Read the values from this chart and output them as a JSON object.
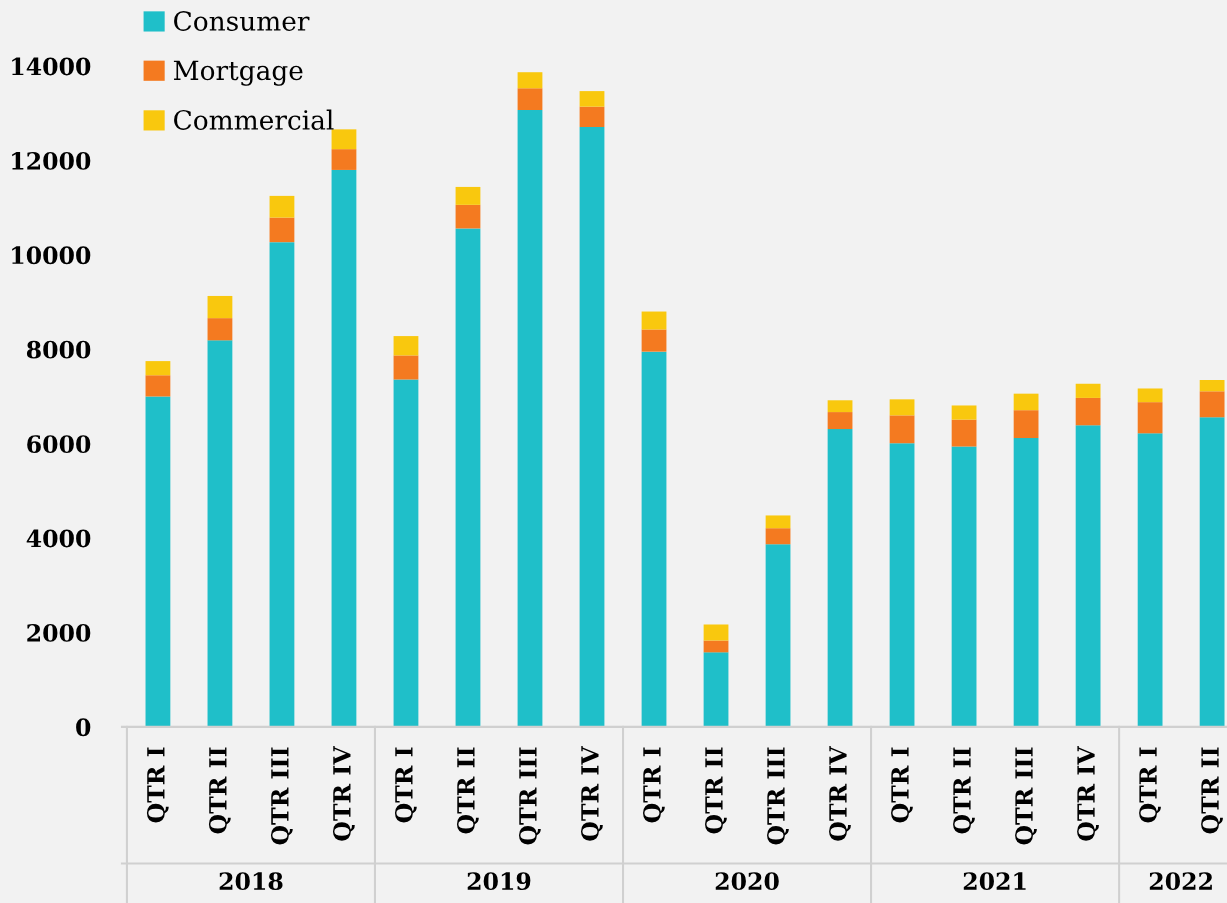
{
  "chart_data": {
    "type": "bar",
    "stacked": true,
    "legend": "top left",
    "grid": false,
    "categories": [
      "QTR I",
      "QTR II",
      "QTR III",
      "QTR IV",
      "QTR I",
      "QTR II",
      "QTR III",
      "QTR IV",
      "QTR I",
      "QTR II",
      "QTR III",
      "QTR IV",
      "QTR I",
      "QTR II",
      "QTR III",
      "QTR IV",
      "QTR I",
      "QTR II"
    ],
    "series": [
      {
        "name": "Consumer",
        "color": "#1fbfc9",
        "values": [
          7000,
          8190,
          10270,
          11800,
          7360,
          10560,
          13070,
          12710,
          7950,
          1580,
          3870,
          6310,
          6010,
          5940,
          6120,
          6390,
          6220,
          6560
        ]
      },
      {
        "name": "Mortgage",
        "color": "#f47a20",
        "values": [
          450,
          470,
          520,
          440,
          510,
          500,
          460,
          430,
          470,
          250,
          340,
          360,
          590,
          570,
          590,
          580,
          660,
          550
        ]
      },
      {
        "name": "Commercial",
        "color": "#f9c80e",
        "values": [
          300,
          470,
          460,
          420,
          410,
          380,
          340,
          330,
          380,
          340,
          270,
          250,
          340,
          300,
          350,
          300,
          290,
          240
        ]
      }
    ],
    "ylim": [
      0,
      15400
    ],
    "yticks": [
      0,
      2000,
      4000,
      6000,
      8000,
      10000,
      12000,
      14000
    ],
    "annotations": [
      "2018",
      "2019",
      "2020",
      "2021",
      "2022"
    ]
  }
}
